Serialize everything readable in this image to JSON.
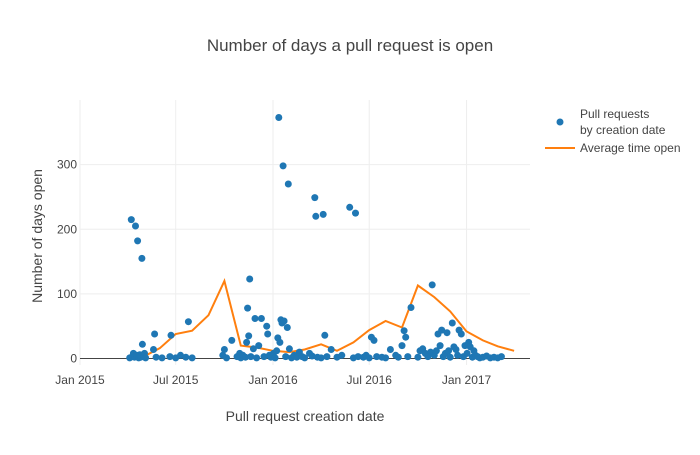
{
  "chart_data": {
    "type": "scatter",
    "title": "Number of days a pull request is open",
    "xlabel": "Pull request creation date",
    "ylabel": "Number of days open",
    "xlim": [
      "2015-01-01",
      "2017-05-01"
    ],
    "ylim": [
      -10,
      400
    ],
    "x_ticks": [
      {
        "value": "2015-01-01",
        "label": "Jan 2015"
      },
      {
        "value": "2015-07-01",
        "label": "Jul 2015"
      },
      {
        "value": "2016-01-01",
        "label": "Jan 2016"
      },
      {
        "value": "2016-07-01",
        "label": "Jul 2016"
      },
      {
        "value": "2017-01-01",
        "label": "Jan 2017"
      }
    ],
    "y_ticks": [
      0,
      100,
      200,
      300
    ],
    "x_grid": true,
    "y_grid": true,
    "legend_position": "top-right",
    "colors": {
      "scatter": "#1f77b4",
      "line": "#ff7f0e"
    },
    "series": [
      {
        "name": "Pull requests by creation date",
        "legend_lines": [
          "Pull requests",
          "by creation date"
        ],
        "mode": "markers",
        "points": [
          [
            "2015-04-05",
            1
          ],
          [
            "2015-04-08",
            215
          ],
          [
            "2015-04-10",
            3
          ],
          [
            "2015-04-12",
            8
          ],
          [
            "2015-04-14",
            2
          ],
          [
            "2015-04-16",
            205
          ],
          [
            "2015-04-18",
            5
          ],
          [
            "2015-04-20",
            182
          ],
          [
            "2015-04-22",
            1
          ],
          [
            "2015-04-24",
            6
          ],
          [
            "2015-04-26",
            2
          ],
          [
            "2015-04-28",
            155
          ],
          [
            "2015-04-29",
            22
          ],
          [
            "2015-05-01",
            4
          ],
          [
            "2015-05-03",
            8
          ],
          [
            "2015-05-05",
            1
          ],
          [
            "2015-05-20",
            14
          ],
          [
            "2015-05-22",
            38
          ],
          [
            "2015-05-25",
            2
          ],
          [
            "2015-06-05",
            1
          ],
          [
            "2015-06-20",
            3
          ],
          [
            "2015-06-22",
            36
          ],
          [
            "2015-07-01",
            1
          ],
          [
            "2015-07-10",
            5
          ],
          [
            "2015-07-20",
            2
          ],
          [
            "2015-07-25",
            57
          ],
          [
            "2015-08-01",
            1
          ],
          [
            "2015-09-28",
            5
          ],
          [
            "2015-10-01",
            14
          ],
          [
            "2015-10-05",
            1
          ],
          [
            "2015-10-15",
            28
          ],
          [
            "2015-10-25",
            3
          ],
          [
            "2015-10-30",
            8
          ],
          [
            "2015-11-01",
            1
          ],
          [
            "2015-11-05",
            5
          ],
          [
            "2015-11-10",
            2
          ],
          [
            "2015-11-12",
            25
          ],
          [
            "2015-11-14",
            78
          ],
          [
            "2015-11-16",
            35
          ],
          [
            "2015-11-18",
            123
          ],
          [
            "2015-11-20",
            3
          ],
          [
            "2015-11-25",
            15
          ],
          [
            "2015-11-28",
            62
          ],
          [
            "2015-12-01",
            1
          ],
          [
            "2015-12-05",
            20
          ],
          [
            "2015-12-10",
            62
          ],
          [
            "2015-12-15",
            3
          ],
          [
            "2015-12-20",
            50
          ],
          [
            "2015-12-22",
            38
          ],
          [
            "2015-12-25",
            5
          ],
          [
            "2015-12-28",
            2
          ],
          [
            "2016-01-02",
            8
          ],
          [
            "2016-01-05",
            1
          ],
          [
            "2016-01-08",
            12
          ],
          [
            "2016-01-10",
            32
          ],
          [
            "2016-01-12",
            373
          ],
          [
            "2016-01-14",
            25
          ],
          [
            "2016-01-16",
            60
          ],
          [
            "2016-01-18",
            55
          ],
          [
            "2016-01-20",
            298
          ],
          [
            "2016-01-22",
            58
          ],
          [
            "2016-01-25",
            3
          ],
          [
            "2016-01-28",
            48
          ],
          [
            "2016-01-30",
            270
          ],
          [
            "2016-02-01",
            15
          ],
          [
            "2016-02-05",
            1
          ],
          [
            "2016-02-10",
            5
          ],
          [
            "2016-02-15",
            2
          ],
          [
            "2016-02-20",
            10
          ],
          [
            "2016-02-25",
            3
          ],
          [
            "2016-03-01",
            1
          ],
          [
            "2016-03-10",
            8
          ],
          [
            "2016-03-15",
            4
          ],
          [
            "2016-03-20",
            249
          ],
          [
            "2016-03-22",
            220
          ],
          [
            "2016-03-25",
            2
          ],
          [
            "2016-04-01",
            1
          ],
          [
            "2016-04-05",
            223
          ],
          [
            "2016-04-08",
            36
          ],
          [
            "2016-04-12",
            3
          ],
          [
            "2016-04-20",
            14
          ],
          [
            "2016-05-01",
            2
          ],
          [
            "2016-05-10",
            5
          ],
          [
            "2016-05-25",
            234
          ],
          [
            "2016-06-01",
            1
          ],
          [
            "2016-06-05",
            225
          ],
          [
            "2016-06-10",
            3
          ],
          [
            "2016-06-20",
            2
          ],
          [
            "2016-06-25",
            5
          ],
          [
            "2016-07-01",
            1
          ],
          [
            "2016-07-05",
            33
          ],
          [
            "2016-07-10",
            28
          ],
          [
            "2016-07-15",
            3
          ],
          [
            "2016-07-25",
            2
          ],
          [
            "2016-08-01",
            1
          ],
          [
            "2016-08-10",
            14
          ],
          [
            "2016-08-20",
            5
          ],
          [
            "2016-08-25",
            2
          ],
          [
            "2016-09-01",
            20
          ],
          [
            "2016-09-05",
            43
          ],
          [
            "2016-09-08",
            33
          ],
          [
            "2016-09-12",
            3
          ],
          [
            "2016-09-18",
            79
          ],
          [
            "2016-10-01",
            2
          ],
          [
            "2016-10-05",
            12
          ],
          [
            "2016-10-10",
            15
          ],
          [
            "2016-10-15",
            8
          ],
          [
            "2016-10-20",
            3
          ],
          [
            "2016-10-25",
            10
          ],
          [
            "2016-10-28",
            114
          ],
          [
            "2016-11-01",
            5
          ],
          [
            "2016-11-05",
            12
          ],
          [
            "2016-11-08",
            38
          ],
          [
            "2016-11-12",
            20
          ],
          [
            "2016-11-15",
            44
          ],
          [
            "2016-11-18",
            3
          ],
          [
            "2016-11-22",
            8
          ],
          [
            "2016-11-25",
            40
          ],
          [
            "2016-11-28",
            12
          ],
          [
            "2016-12-01",
            2
          ],
          [
            "2016-12-05",
            55
          ],
          [
            "2016-12-08",
            18
          ],
          [
            "2016-12-12",
            14
          ],
          [
            "2016-12-15",
            5
          ],
          [
            "2016-12-18",
            44
          ],
          [
            "2016-12-22",
            38
          ],
          [
            "2016-12-26",
            3
          ],
          [
            "2016-12-29",
            20
          ],
          [
            "2017-01-02",
            8
          ],
          [
            "2017-01-05",
            25
          ],
          [
            "2017-01-08",
            18
          ],
          [
            "2017-01-12",
            2
          ],
          [
            "2017-01-15",
            12
          ],
          [
            "2017-01-18",
            5
          ],
          [
            "2017-01-22",
            3
          ],
          [
            "2017-01-26",
            1
          ],
          [
            "2017-02-01",
            2
          ],
          [
            "2017-02-08",
            4
          ],
          [
            "2017-02-15",
            1
          ],
          [
            "2017-02-22",
            2
          ],
          [
            "2017-03-01",
            1
          ],
          [
            "2017-03-08",
            3
          ]
        ]
      },
      {
        "name": "Average time open",
        "legend_lines": [
          "Average time open"
        ],
        "mode": "lines",
        "points": [
          [
            "2015-04-01",
            1
          ],
          [
            "2015-05-01",
            3
          ],
          [
            "2015-06-01",
            16
          ],
          [
            "2015-07-01",
            38
          ],
          [
            "2015-08-01",
            43
          ],
          [
            "2015-09-01",
            67
          ],
          [
            "2015-10-01",
            120
          ],
          [
            "2015-11-01",
            20
          ],
          [
            "2015-12-01",
            17
          ],
          [
            "2016-01-01",
            12
          ],
          [
            "2016-02-01",
            10
          ],
          [
            "2016-03-01",
            14
          ],
          [
            "2016-04-01",
            22
          ],
          [
            "2016-05-01",
            12
          ],
          [
            "2016-06-01",
            25
          ],
          [
            "2016-07-01",
            44
          ],
          [
            "2016-08-01",
            58
          ],
          [
            "2016-09-01",
            48
          ],
          [
            "2016-10-01",
            113
          ],
          [
            "2016-11-01",
            95
          ],
          [
            "2016-12-01",
            73
          ],
          [
            "2017-01-01",
            42
          ],
          [
            "2017-02-01",
            28
          ],
          [
            "2017-03-01",
            19
          ],
          [
            "2017-04-01",
            12
          ]
        ]
      }
    ]
  }
}
